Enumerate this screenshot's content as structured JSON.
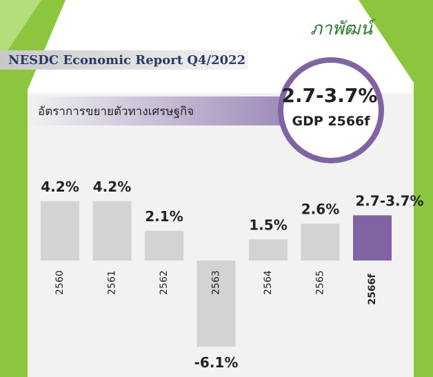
{
  "logo": "ภาพัฒน์",
  "header": "NESDC Economic Report Q4/2022",
  "badge": {
    "range": "2.7-3.7%",
    "label": "GDP 2566f"
  },
  "chart_data": {
    "type": "bar",
    "title": "อัตราการขยายตัวทางเศรษฐกิจ",
    "categories": [
      "2560",
      "2561",
      "2562",
      "2563",
      "2564",
      "2565",
      "2566f"
    ],
    "values": [
      4.2,
      4.2,
      2.1,
      -6.1,
      1.5,
      2.6,
      null
    ],
    "value_labels": [
      "4.2%",
      "4.2%",
      "2.1%",
      "-6.1%",
      "1.5%",
      "2.6%",
      "2.7-3.7%"
    ],
    "forecast_range": [
      2.7,
      3.7
    ],
    "color": "#d3d3d3",
    "forecast_color": "#8064a2",
    "negative_label_color": "#e0201b"
  }
}
